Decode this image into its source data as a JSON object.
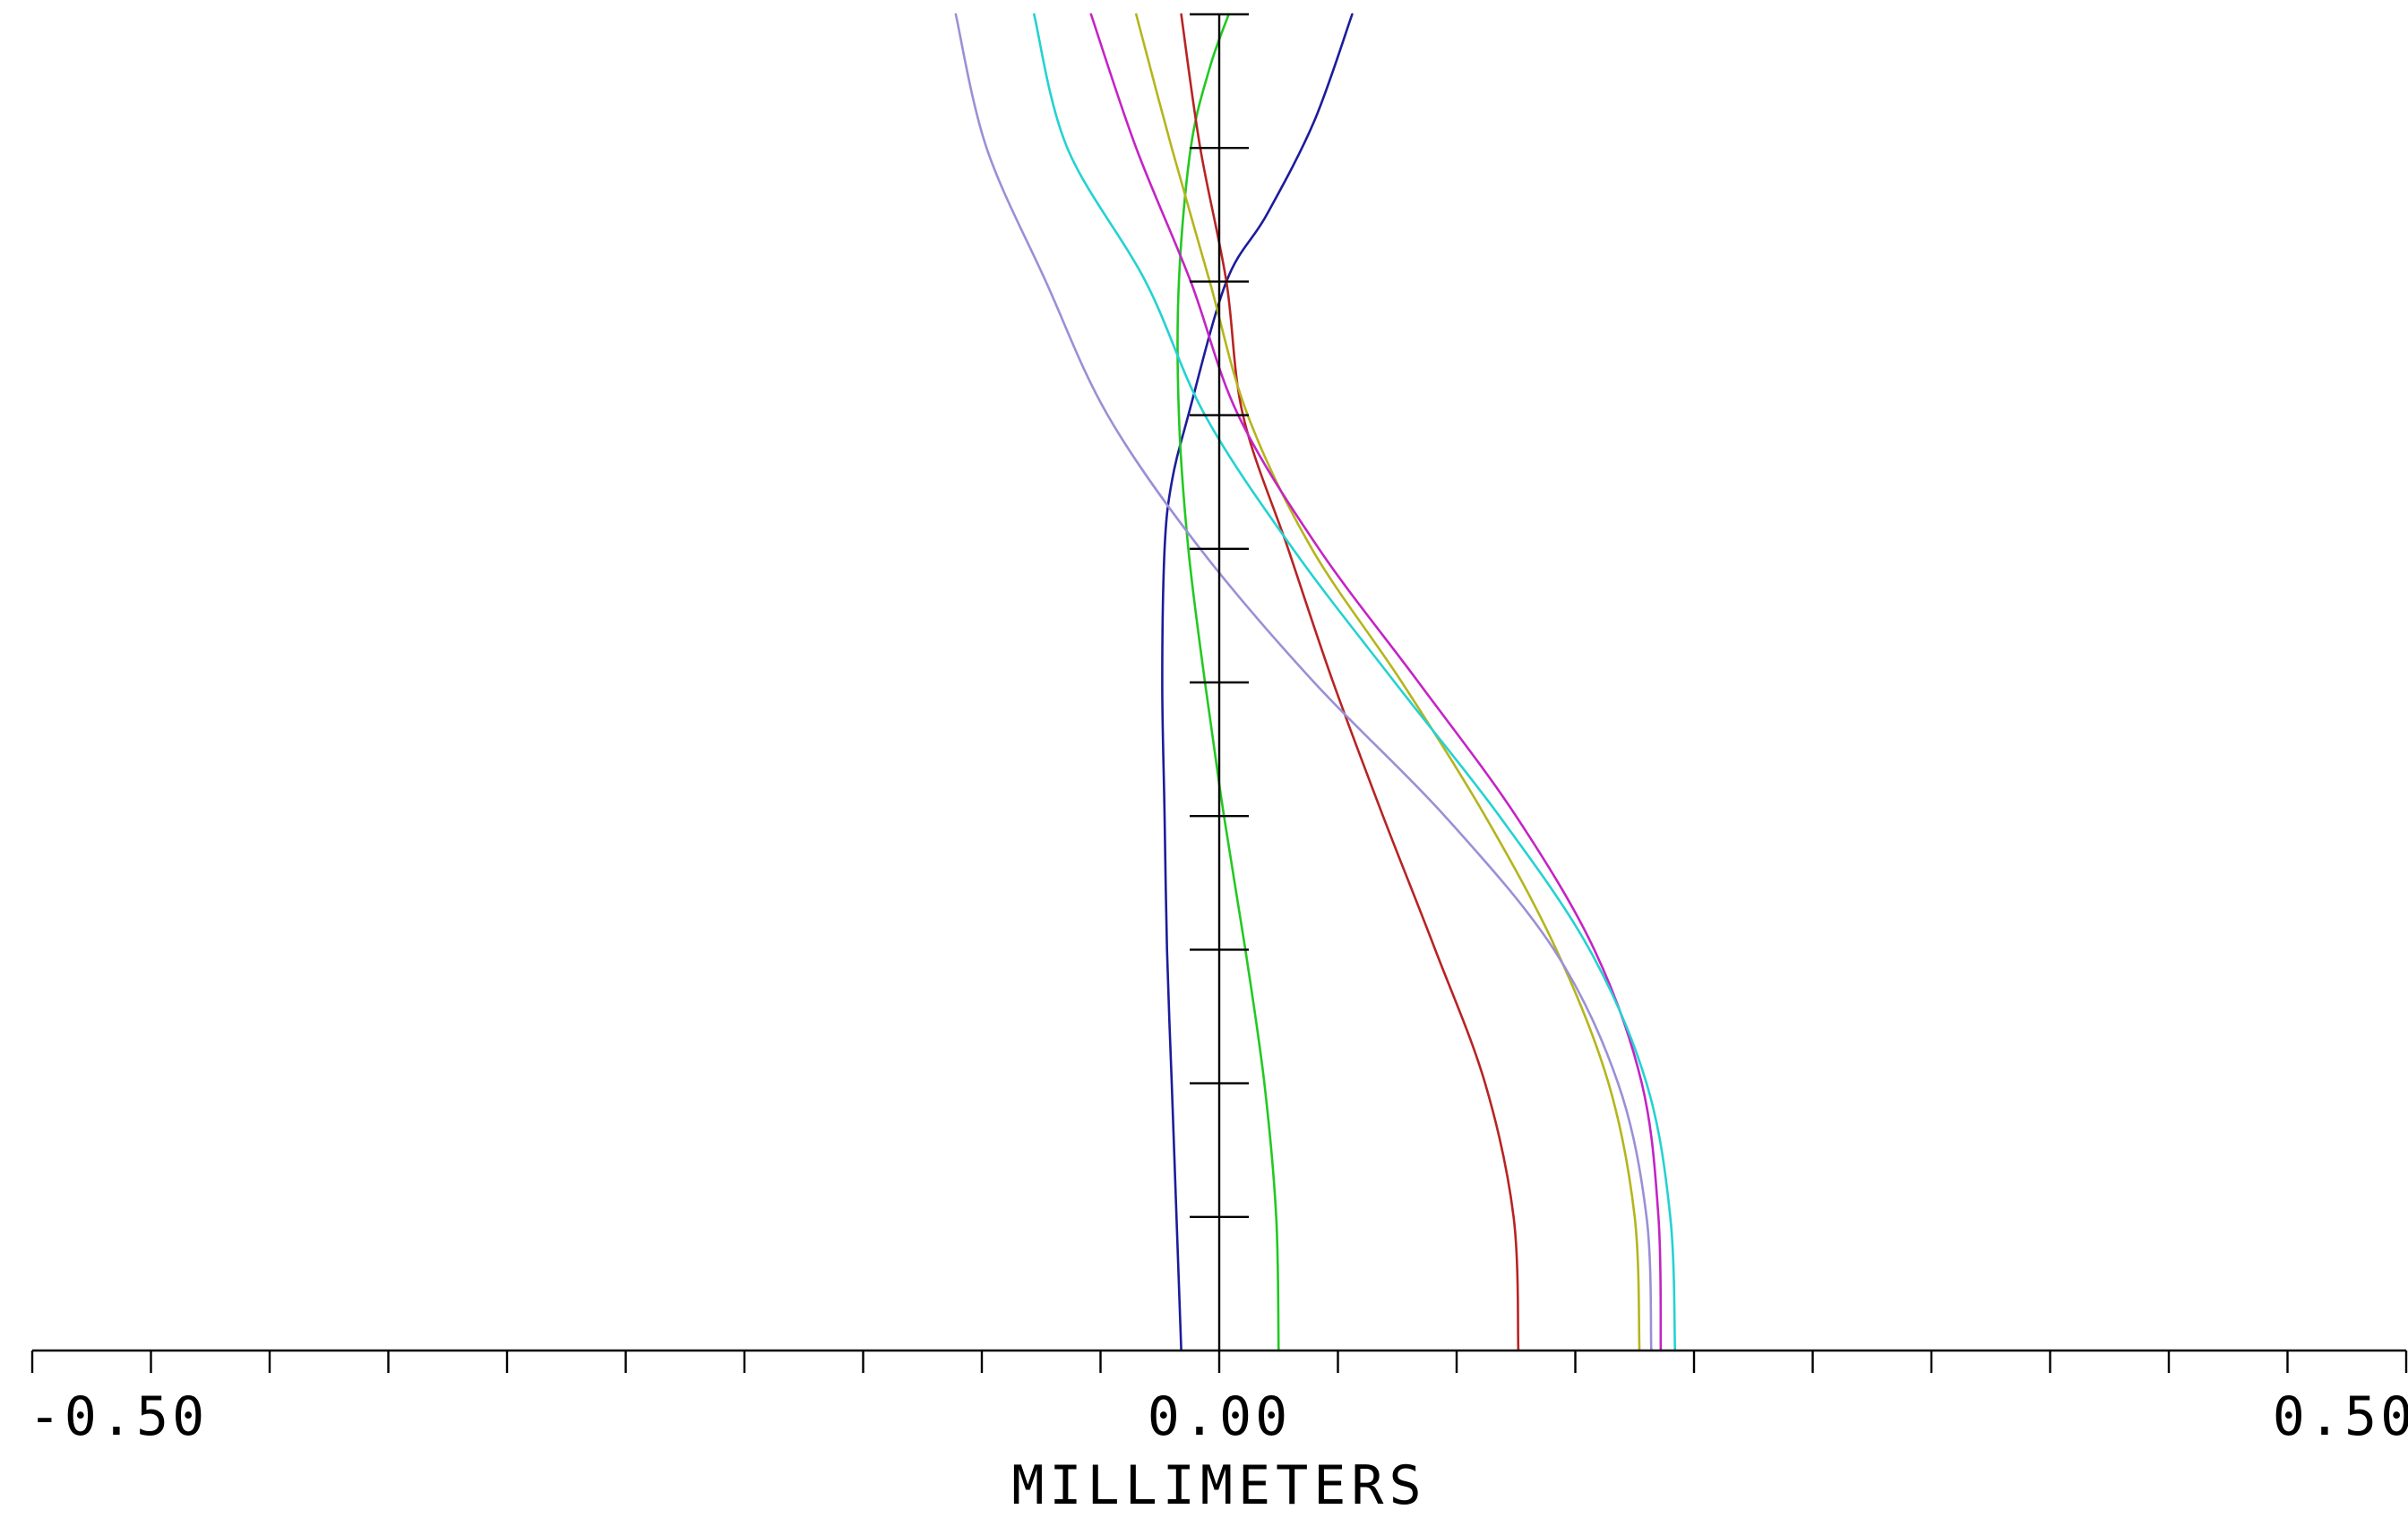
{
  "chart_data": {
    "type": "line",
    "title": "",
    "xlabel": "MILLIMETERS",
    "ylabel": "",
    "xlim": [
      -0.5,
      0.5
    ],
    "ylim": [
      0,
      1
    ],
    "x_tick_labels": [
      "-0.50",
      "0.00",
      "0.50"
    ],
    "x_minor_tick_step": 0.05,
    "y_tick_step": 0.1,
    "grid": false,
    "legend": "none",
    "series": [
      {
        "color": "#1c1c9c",
        "x": [
          -0.016,
          -0.018,
          -0.02,
          -0.022,
          -0.023,
          -0.024,
          -0.023,
          -0.02,
          -0.013,
          0.003,
          0.02,
          0.04,
          0.056
        ],
        "y": [
          0.0,
          0.1,
          0.2,
          0.3,
          0.4,
          0.5,
          0.6,
          0.65,
          0.7,
          0.8,
          0.85,
          0.92,
          1.0
        ]
      },
      {
        "color": "#22c922",
        "x": [
          0.025,
          0.024,
          0.019,
          0.011,
          0.002,
          -0.006,
          -0.013,
          -0.017,
          -0.017,
          -0.012,
          -0.004,
          0.004
        ],
        "y": [
          0.0,
          0.1,
          0.2,
          0.3,
          0.4,
          0.5,
          0.6,
          0.7,
          0.8,
          0.9,
          0.96,
          1.0
        ]
      },
      {
        "color": "#b82323",
        "x": [
          0.126,
          0.124,
          0.112,
          0.091,
          0.069,
          0.048,
          0.029,
          0.01,
          0.003,
          -0.008,
          -0.016
        ],
        "y": [
          0.0,
          0.1,
          0.2,
          0.3,
          0.4,
          0.5,
          0.6,
          0.7,
          0.8,
          0.9,
          1.0
        ]
      },
      {
        "color": "#b5b51d",
        "x": [
          0.177,
          0.175,
          0.164,
          0.142,
          0.112,
          0.077,
          0.039,
          0.012,
          -0.004,
          -0.02,
          -0.035
        ],
        "y": [
          0.0,
          0.1,
          0.2,
          0.3,
          0.4,
          0.5,
          0.6,
          0.7,
          0.8,
          0.9,
          1.0
        ]
      },
      {
        "color": "#c424c4",
        "x": [
          0.186,
          0.185,
          0.178,
          0.158,
          0.125,
          0.084,
          0.042,
          0.008,
          -0.012,
          -0.035,
          -0.054
        ],
        "y": [
          0.0,
          0.1,
          0.2,
          0.3,
          0.4,
          0.5,
          0.6,
          0.7,
          0.8,
          0.9,
          1.0
        ]
      },
      {
        "color": "#24d2d2",
        "x": [
          0.192,
          0.19,
          0.18,
          0.156,
          0.118,
          0.074,
          0.031,
          -0.006,
          -0.031,
          -0.064,
          -0.078
        ],
        "y": [
          0.0,
          0.1,
          0.2,
          0.3,
          0.4,
          0.5,
          0.6,
          0.7,
          0.8,
          0.9,
          1.0
        ]
      },
      {
        "color": "#9a90d6",
        "x": [
          0.182,
          0.18,
          0.168,
          0.141,
          0.095,
          0.04,
          -0.008,
          -0.047,
          -0.073,
          -0.098,
          -0.111
        ],
        "y": [
          0.0,
          0.1,
          0.2,
          0.3,
          0.4,
          0.5,
          0.6,
          0.7,
          0.8,
          0.9,
          1.0
        ]
      }
    ]
  }
}
